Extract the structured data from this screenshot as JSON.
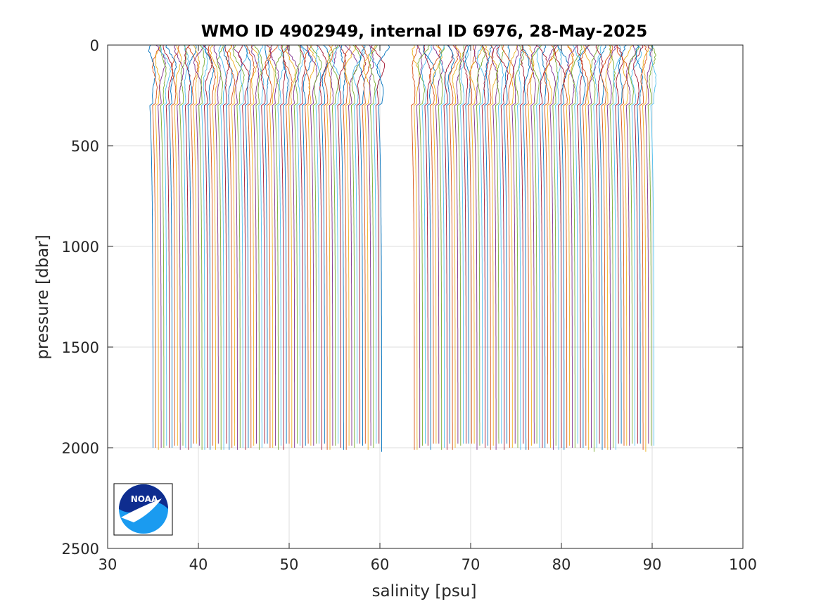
{
  "chart_data": {
    "type": "line",
    "title": "WMO ID 4902949, internal ID 6976, 28-May-2025",
    "xlabel": "salinity [psu]",
    "ylabel": "pressure [dbar]",
    "xlim": [
      30,
      100
    ],
    "ylim": [
      0,
      2500
    ],
    "y_reversed": true,
    "grid": true,
    "x_ticks": [
      "30",
      "40",
      "50",
      "60",
      "70",
      "80",
      "90",
      "100"
    ],
    "y_ticks": [
      "0",
      "500",
      "1000",
      "1500",
      "2000",
      "2500"
    ],
    "profile_style": "waterfall: each successive profile offset by ~0.3 psu",
    "profile_groups": [
      {
        "first_surface_salinity": 35.0,
        "last_surface_salinity": 60.2,
        "count": 85,
        "offset_step": 0.3,
        "max_pressure": 2000
      },
      {
        "first_surface_salinity": 63.8,
        "last_surface_salinity": 90.2,
        "count": 89,
        "offset_step": 0.3,
        "max_pressure": 2000
      }
    ],
    "line_colors": [
      "#0072BD",
      "#D95319",
      "#EDB120",
      "#7E2F8E",
      "#77AC30",
      "#4DBEEE",
      "#A2142F"
    ],
    "logo": {
      "name": "noaa-logo",
      "text": "NOAA",
      "placement": "lower-left"
    }
  }
}
